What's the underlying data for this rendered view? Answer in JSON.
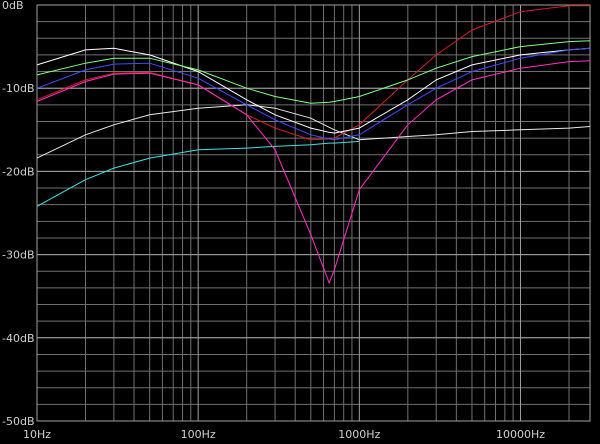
{
  "chart_data": {
    "type": "line",
    "x": [
      10,
      20,
      30,
      50,
      100,
      200,
      300,
      500,
      650,
      700,
      1000,
      2000,
      3000,
      5000,
      10000,
      20000,
      27000
    ],
    "xlim": [
      10,
      27000
    ],
    "x_log": true,
    "xticks": [
      {
        "value": 10,
        "label": "10Hz"
      },
      {
        "value": 100,
        "label": "100Hz"
      },
      {
        "value": 1000,
        "label": "1000Hz"
      },
      {
        "value": 10000,
        "label": "10000Hz"
      }
    ],
    "ylim": [
      -50,
      0
    ],
    "yticks": [
      {
        "value": 0,
        "label": "0dB"
      },
      {
        "value": -10,
        "label": "-10dB"
      },
      {
        "value": -20,
        "label": "-20dB"
      },
      {
        "value": -30,
        "label": "-30dB"
      },
      {
        "value": -40,
        "label": "-40dB"
      },
      {
        "value": -50,
        "label": "-50dB"
      }
    ],
    "grid": true,
    "series": [
      {
        "color": "#e8e8e8",
        "values": [
          -18.4,
          -15.6,
          -14.4,
          -13.2,
          -12.4,
          -12,
          -12.4,
          -13.6,
          -14.7,
          -15,
          -16.2,
          -15.8,
          -15.6,
          -15.2,
          -15,
          -14.8,
          -14.6
        ]
      },
      {
        "color": "#40e0e0",
        "values": [
          -24.2,
          -21,
          -19.6,
          -18.4,
          -17.4,
          -17.2,
          -17,
          -16.8,
          -16.6,
          -16.6,
          -16.4,
          null,
          null,
          null,
          null,
          null,
          null
        ]
      },
      {
        "color": "#d02020",
        "values": [
          -11.4,
          -9,
          -8.2,
          -8.1,
          -9.6,
          -13.2,
          -14.8,
          -16.2,
          -16.1,
          -16,
          -14.4,
          -9,
          -6,
          -3,
          -0.8,
          -0.1,
          -0.1
        ]
      },
      {
        "color": "#ffffff",
        "values": [
          -7.2,
          -5.4,
          -5.2,
          -6,
          -8,
          -11.4,
          -13.2,
          -14.8,
          -15.3,
          -15.4,
          -14.8,
          -11.4,
          -9,
          -7.2,
          -6,
          -5.4,
          -5.2
        ]
      },
      {
        "color": "#80ff80",
        "values": [
          -8.4,
          -7,
          -6.4,
          -6.4,
          -7.8,
          -10,
          -11,
          -11.8,
          -11.7,
          -11.6,
          -11,
          -9,
          -7.6,
          -6.2,
          -5,
          -4.4,
          -4.3
        ]
      },
      {
        "color": "#4848ff",
        "values": [
          -10,
          -7.8,
          -7.1,
          -7,
          -8.8,
          -12,
          -13.8,
          -15.6,
          -16.1,
          -16.2,
          -15.6,
          -12,
          -10,
          -8,
          -6.4,
          -5.4,
          -5.2
        ]
      },
      {
        "color": "#ff30c0",
        "values": [
          -11.6,
          -9.2,
          -8.3,
          -8.2,
          -9.6,
          -13.2,
          -17.4,
          -27.6,
          -33.4,
          -31.8,
          -22.2,
          -14.4,
          -11.4,
          -9,
          -7.6,
          -6.8,
          -6.7
        ]
      }
    ]
  }
}
